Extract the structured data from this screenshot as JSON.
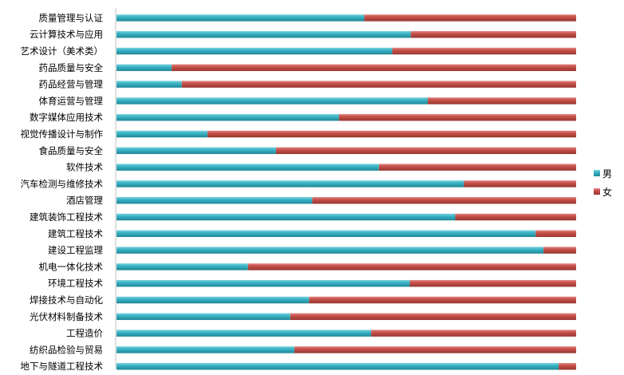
{
  "chart_data": {
    "type": "bar",
    "orientation": "horizontal",
    "stacked": "100%",
    "categories": [
      "质量管理与认证",
      "云计算技术与应用",
      "艺术设计（美术类）",
      "药品质量与安全",
      "药品经营与管理",
      "体育运营与管理",
      "数字媒体应用技术",
      "视觉传播设计与制作",
      "食品质量与安全",
      "软件技术",
      "汽车检测与维修技术",
      "酒店管理",
      "建筑装饰工程技术",
      "建筑工程技术",
      "建设工程监理",
      "机电一体化技术",
      "环境工程技术",
      "焊接技术与自动化",
      "光伏材料制备技术",
      "工程造价",
      "纺织品检验与贸易",
      "地下与隧道工程技术"
    ],
    "series": [
      {
        "name": "男",
        "color": "#33b3c6",
        "values": [
          0.539,
          0.64,
          0.6,
          0.12,
          0.142,
          0.677,
          0.484,
          0.198,
          0.347,
          0.571,
          0.756,
          0.426,
          0.737,
          0.912,
          0.929,
          0.286,
          0.638,
          0.419,
          0.378,
          0.554,
          0.387,
          0.962
        ]
      },
      {
        "name": "女",
        "color": "#c7504b",
        "values": [
          0.461,
          0.36,
          0.4,
          0.88,
          0.858,
          0.323,
          0.516,
          0.802,
          0.653,
          0.429,
          0.244,
          0.574,
          0.263,
          0.088,
          0.071,
          0.714,
          0.362,
          0.581,
          0.622,
          0.446,
          0.613,
          0.038
        ]
      }
    ],
    "xlim": [
      0,
      1
    ],
    "grid": false,
    "legend_position": "right"
  }
}
